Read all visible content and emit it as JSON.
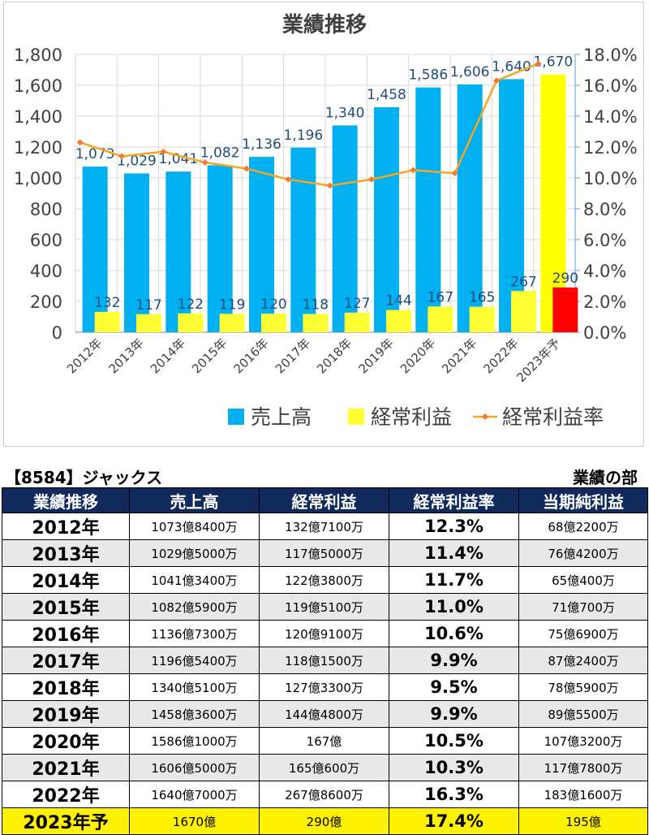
{
  "chart_data": {
    "type": "bar",
    "title": "業績推移",
    "categories": [
      "2012年",
      "2013年",
      "2014年",
      "2015年",
      "2016年",
      "2017年",
      "2018年",
      "2019年",
      "2020年",
      "2021年",
      "2022年",
      "2023年予"
    ],
    "series": [
      {
        "name": "売上高",
        "kind": "bar",
        "axis": "left",
        "color": "#00b0f0",
        "values": [
          1073,
          1029,
          1041,
          1082,
          1136,
          1196,
          1340,
          1458,
          1586,
          1606,
          1640,
          1670
        ]
      },
      {
        "name": "経常利益",
        "kind": "bar",
        "axis": "left",
        "color": "#ffff33",
        "values": [
          132,
          117,
          122,
          119,
          120,
          118,
          127,
          144,
          167,
          165,
          267,
          290
        ]
      },
      {
        "name": "経常利益率",
        "kind": "line",
        "axis": "right",
        "color": "#f5a623",
        "values": [
          12.3,
          11.4,
          11.7,
          11.0,
          10.6,
          9.9,
          9.5,
          9.9,
          10.5,
          10.3,
          16.3,
          17.4
        ]
      }
    ],
    "forecast_colors": {
      "sales": "#ffff00",
      "profit": "#ff0000"
    },
    "ylim": [
      0,
      1800
    ],
    "y_ticks": [
      "0",
      "200",
      "400",
      "600",
      "800",
      "1,000",
      "1,200",
      "1,400",
      "1,600",
      "1,800"
    ],
    "y2lim": [
      0,
      18
    ],
    "y2_ticks": [
      "0.0%",
      "2.0%",
      "4.0%",
      "6.0%",
      "8.0%",
      "10.0%",
      "12.0%",
      "14.0%",
      "16.0%",
      "18.0%"
    ],
    "sales_labels": [
      "1,073",
      "1,029",
      "1,041",
      "1,082",
      "1,136",
      "1,196",
      "1,340",
      "1,458",
      "1,586",
      "1,606",
      "1,640",
      "1,670"
    ],
    "profit_labels": [
      "132",
      "117",
      "122",
      "119",
      "120",
      "118",
      "127",
      "144",
      "167",
      "165",
      "267",
      "290"
    ],
    "grid": true,
    "legend_position": "bottom"
  },
  "table": {
    "company": "【8584】ジャックス",
    "section": "業績の部",
    "headers": [
      "業績推移",
      "売上高",
      "経常利益",
      "経常利益率",
      "当期純利益"
    ],
    "rows": [
      [
        "2012年",
        "1073億8400万",
        "132億7100万",
        "12.3%",
        "68億2200万"
      ],
      [
        "2013年",
        "1029億5000万",
        "117億5000万",
        "11.4%",
        "76億4200万"
      ],
      [
        "2014年",
        "1041億3400万",
        "122億3800万",
        "11.7%",
        "65億400万"
      ],
      [
        "2015年",
        "1082億5900万",
        "119億5100万",
        "11.0%",
        "71億700万"
      ],
      [
        "2016年",
        "1136億7300万",
        "120億9100万",
        "10.6%",
        "75億6900万"
      ],
      [
        "2017年",
        "1196億5400万",
        "118億1500万",
        "9.9%",
        "87億2400万"
      ],
      [
        "2018年",
        "1340億5100万",
        "127億3300万",
        "9.5%",
        "78億5900万"
      ],
      [
        "2019年",
        "1458億3600万",
        "144億4800万",
        "9.9%",
        "89億5500万"
      ],
      [
        "2020年",
        "1586億1000万",
        "167億",
        "10.5%",
        "107億3200万"
      ],
      [
        "2021年",
        "1606億5000万",
        "165億600万",
        "10.3%",
        "117億7800万"
      ],
      [
        "2022年",
        "1640億7000万",
        "267億8600万",
        "16.3%",
        "183億1600万"
      ],
      [
        "2023年予",
        "1670億",
        "290億",
        "17.4%",
        "195億"
      ]
    ]
  }
}
